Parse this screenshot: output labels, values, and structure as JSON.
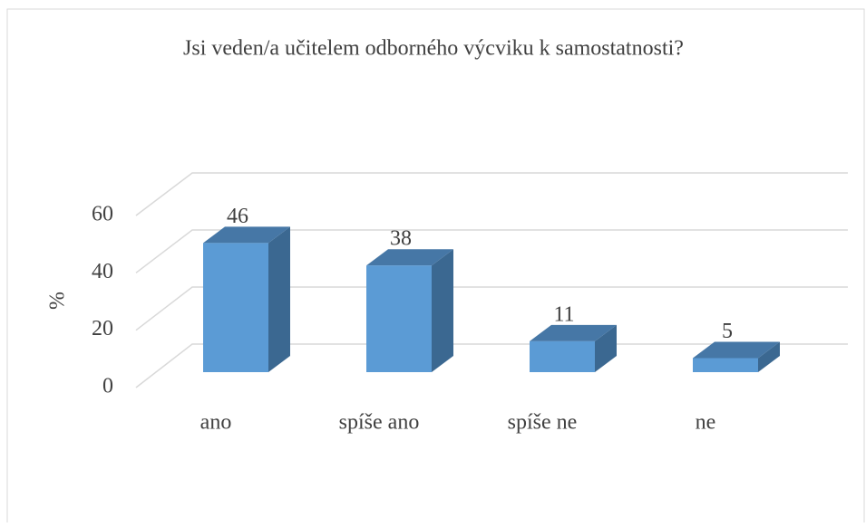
{
  "chart_data": {
    "type": "bar3d",
    "title": "Jsi veden/a učitelem odborného výcviku k samostatnosti?",
    "y_label": "%",
    "categories": [
      "ano",
      "spíše ano",
      "spíše ne",
      "ne"
    ],
    "values": [
      46,
      38,
      11,
      5
    ],
    "color": "#5b9bd5",
    "ylim": [
      0,
      60
    ],
    "yticks": [
      0,
      20,
      40,
      60
    ],
    "grid": true
  }
}
